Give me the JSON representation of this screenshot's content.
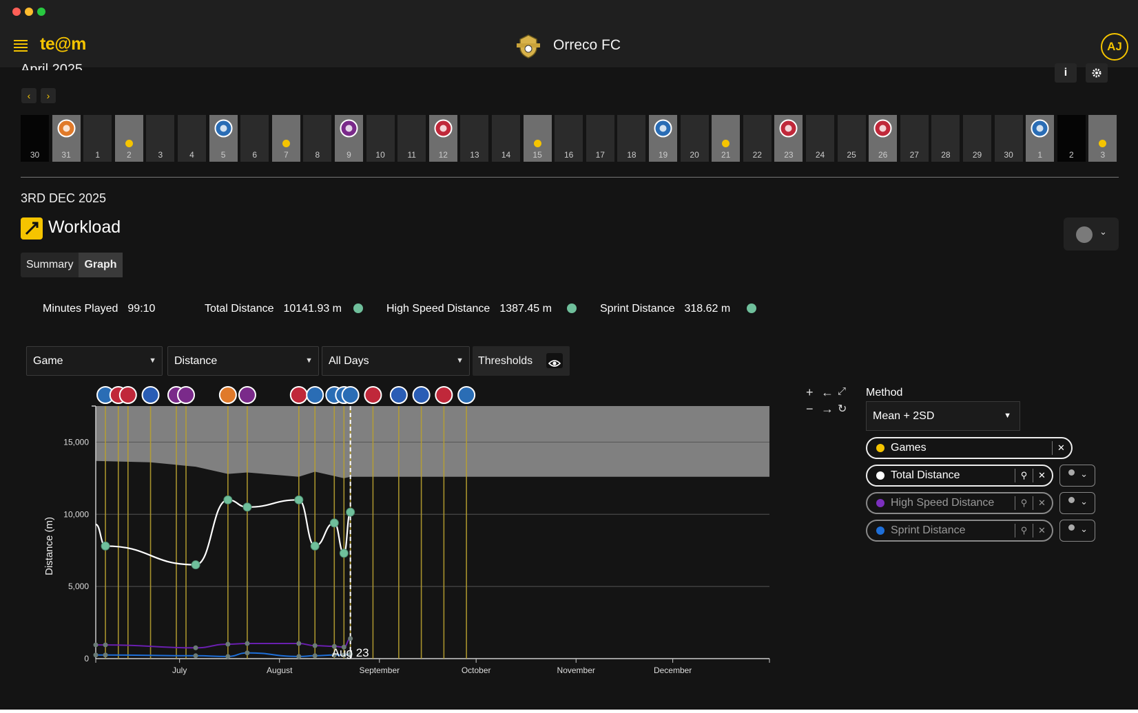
{
  "window": {
    "traffic_lights": [
      "#ff5f57",
      "#febc2e",
      "#28c840"
    ]
  },
  "header": {
    "logo": "te@m",
    "club_name": "Orreco FC",
    "avatar_initials": "AJ"
  },
  "calendar": {
    "month_label": "April 2025",
    "prev_label": "‹",
    "next_label": "›",
    "info_label": "i",
    "days": [
      {
        "n": "30",
        "s": "black"
      },
      {
        "n": "31",
        "s": "active",
        "badge": "orange"
      },
      {
        "n": "1",
        "s": "normal"
      },
      {
        "n": "2",
        "s": "active",
        "dot": true
      },
      {
        "n": "3",
        "s": "normal"
      },
      {
        "n": "4",
        "s": "normal"
      },
      {
        "n": "5",
        "s": "active",
        "badge": "blue"
      },
      {
        "n": "6",
        "s": "normal"
      },
      {
        "n": "7",
        "s": "active",
        "dot": true
      },
      {
        "n": "8",
        "s": "normal"
      },
      {
        "n": "9",
        "s": "active",
        "badge": "purple"
      },
      {
        "n": "10",
        "s": "normal"
      },
      {
        "n": "11",
        "s": "normal"
      },
      {
        "n": "12",
        "s": "active",
        "badge": "red"
      },
      {
        "n": "13",
        "s": "normal"
      },
      {
        "n": "14",
        "s": "normal"
      },
      {
        "n": "15",
        "s": "active",
        "dot": true
      },
      {
        "n": "16",
        "s": "normal"
      },
      {
        "n": "17",
        "s": "normal"
      },
      {
        "n": "18",
        "s": "normal"
      },
      {
        "n": "19",
        "s": "active",
        "badge": "blue"
      },
      {
        "n": "20",
        "s": "normal"
      },
      {
        "n": "21",
        "s": "active",
        "dot": true
      },
      {
        "n": "22",
        "s": "normal"
      },
      {
        "n": "23",
        "s": "active",
        "badge": "red"
      },
      {
        "n": "24",
        "s": "normal"
      },
      {
        "n": "25",
        "s": "normal"
      },
      {
        "n": "26",
        "s": "active",
        "badge": "red"
      },
      {
        "n": "27",
        "s": "normal"
      },
      {
        "n": "28",
        "s": "normal"
      },
      {
        "n": "29",
        "s": "normal"
      },
      {
        "n": "30",
        "s": "normal"
      },
      {
        "n": "1",
        "s": "active",
        "badge": "blue"
      },
      {
        "n": "2",
        "s": "black"
      },
      {
        "n": "3",
        "s": "active",
        "dot": true
      }
    ]
  },
  "selected_date": "3RD DEC 2025",
  "section_title": "Workload",
  "tabs": [
    {
      "label": "Summary",
      "selected": false
    },
    {
      "label": "Graph",
      "selected": true
    }
  ],
  "stats": [
    {
      "label": "Minutes Played",
      "value": "99:10",
      "dot": false
    },
    {
      "label": "Total Distance",
      "value": "10141.93 m",
      "dot": true
    },
    {
      "label": "High Speed Distance",
      "value": "1387.45 m",
      "dot": true
    },
    {
      "label": "Sprint Distance",
      "value": "318.62 m",
      "dot": true
    }
  ],
  "filters": {
    "type": "Game",
    "metric": "Distance",
    "days": "All Days",
    "thresholds_label": "Thresholds"
  },
  "method": {
    "label": "Method",
    "value": "Mean + 2SD"
  },
  "series_toggles": [
    {
      "label": "Games",
      "color": "#f5c400",
      "active": true
    },
    {
      "label": "Total Distance",
      "color": "#ffffff",
      "active": true
    },
    {
      "label": "High Speed Distance",
      "color": "#7b2fbe",
      "active": false
    },
    {
      "label": "Sprint Distance",
      "color": "#1e6fd9",
      "active": false
    }
  ],
  "colors": {
    "accent": "#f5c400",
    "point": "#6fbf9b",
    "threshold_band": "#808080"
  },
  "chart_data": {
    "type": "line",
    "ylabel": "Distance (m)",
    "ylim": [
      0,
      17500
    ],
    "yticks": [
      0,
      5000,
      10000,
      15000
    ],
    "ytick_labels": [
      "0",
      "5,000",
      "10,000",
      "15,000"
    ],
    "xlim": [
      "2025-06-05",
      "2025-12-31"
    ],
    "xticks": [
      {
        "date": "2025-07-01",
        "label": "July"
      },
      {
        "date": "2025-08-01",
        "label": "August"
      },
      {
        "date": "2025-09-01",
        "label": "September"
      },
      {
        "date": "2025-10-01",
        "label": "October"
      },
      {
        "date": "2025-11-01",
        "label": "November"
      },
      {
        "date": "2025-12-01",
        "label": "December"
      }
    ],
    "game_dates": [
      "2025-06-08",
      "2025-06-12",
      "2025-06-15",
      "2025-06-22",
      "2025-06-30",
      "2025-07-03",
      "2025-07-16",
      "2025-07-22",
      "2025-08-07",
      "2025-08-12",
      "2025-08-18",
      "2025-08-21",
      "2025-08-23",
      "2025-08-30",
      "2025-09-07",
      "2025-09-14",
      "2025-09-21",
      "2025-09-28"
    ],
    "series": [
      {
        "name": "Total Distance",
        "color": "#ffffff",
        "points": [
          {
            "x": "2025-06-05",
            "y": 9300
          },
          {
            "x": "2025-06-08",
            "y": 7800
          },
          {
            "x": "2025-07-06",
            "y": 6500
          },
          {
            "x": "2025-07-16",
            "y": 11000
          },
          {
            "x": "2025-07-22",
            "y": 10500
          },
          {
            "x": "2025-08-07",
            "y": 11000
          },
          {
            "x": "2025-08-12",
            "y": 7800
          },
          {
            "x": "2025-08-18",
            "y": 9400
          },
          {
            "x": "2025-08-21",
            "y": 7300
          },
          {
            "x": "2025-08-23",
            "y": 10150
          }
        ]
      },
      {
        "name": "High Speed Distance",
        "color": "#6a1fb0",
        "points": [
          {
            "x": "2025-06-05",
            "y": 950
          },
          {
            "x": "2025-06-08",
            "y": 950
          },
          {
            "x": "2025-07-06",
            "y": 750
          },
          {
            "x": "2025-07-16",
            "y": 1000
          },
          {
            "x": "2025-07-22",
            "y": 1050
          },
          {
            "x": "2025-08-07",
            "y": 1050
          },
          {
            "x": "2025-08-12",
            "y": 900
          },
          {
            "x": "2025-08-18",
            "y": 850
          },
          {
            "x": "2025-08-21",
            "y": 800
          },
          {
            "x": "2025-08-23",
            "y": 1390
          }
        ]
      },
      {
        "name": "Sprint Distance",
        "color": "#1e6fd9",
        "points": [
          {
            "x": "2025-06-05",
            "y": 250
          },
          {
            "x": "2025-06-08",
            "y": 250
          },
          {
            "x": "2025-07-06",
            "y": 200
          },
          {
            "x": "2025-07-16",
            "y": 150
          },
          {
            "x": "2025-07-22",
            "y": 400
          },
          {
            "x": "2025-08-07",
            "y": 150
          },
          {
            "x": "2025-08-12",
            "y": 200
          },
          {
            "x": "2025-08-18",
            "y": 250
          },
          {
            "x": "2025-08-21",
            "y": 250
          },
          {
            "x": "2025-08-23",
            "y": 320
          }
        ]
      }
    ],
    "threshold_lower": [
      {
        "x": "2025-06-05",
        "y": 13700
      },
      {
        "x": "2025-06-22",
        "y": 13600
      },
      {
        "x": "2025-07-06",
        "y": 13300
      },
      {
        "x": "2025-07-16",
        "y": 12800
      },
      {
        "x": "2025-07-22",
        "y": 12900
      },
      {
        "x": "2025-08-07",
        "y": 12600
      },
      {
        "x": "2025-08-12",
        "y": 12950
      },
      {
        "x": "2025-08-21",
        "y": 12500
      },
      {
        "x": "2025-08-23",
        "y": 12600
      },
      {
        "x": "2025-12-31",
        "y": 12600
      }
    ],
    "threshold_upper": 17500,
    "annotation": {
      "x": "2025-08-23",
      "label": "Aug 23"
    }
  }
}
